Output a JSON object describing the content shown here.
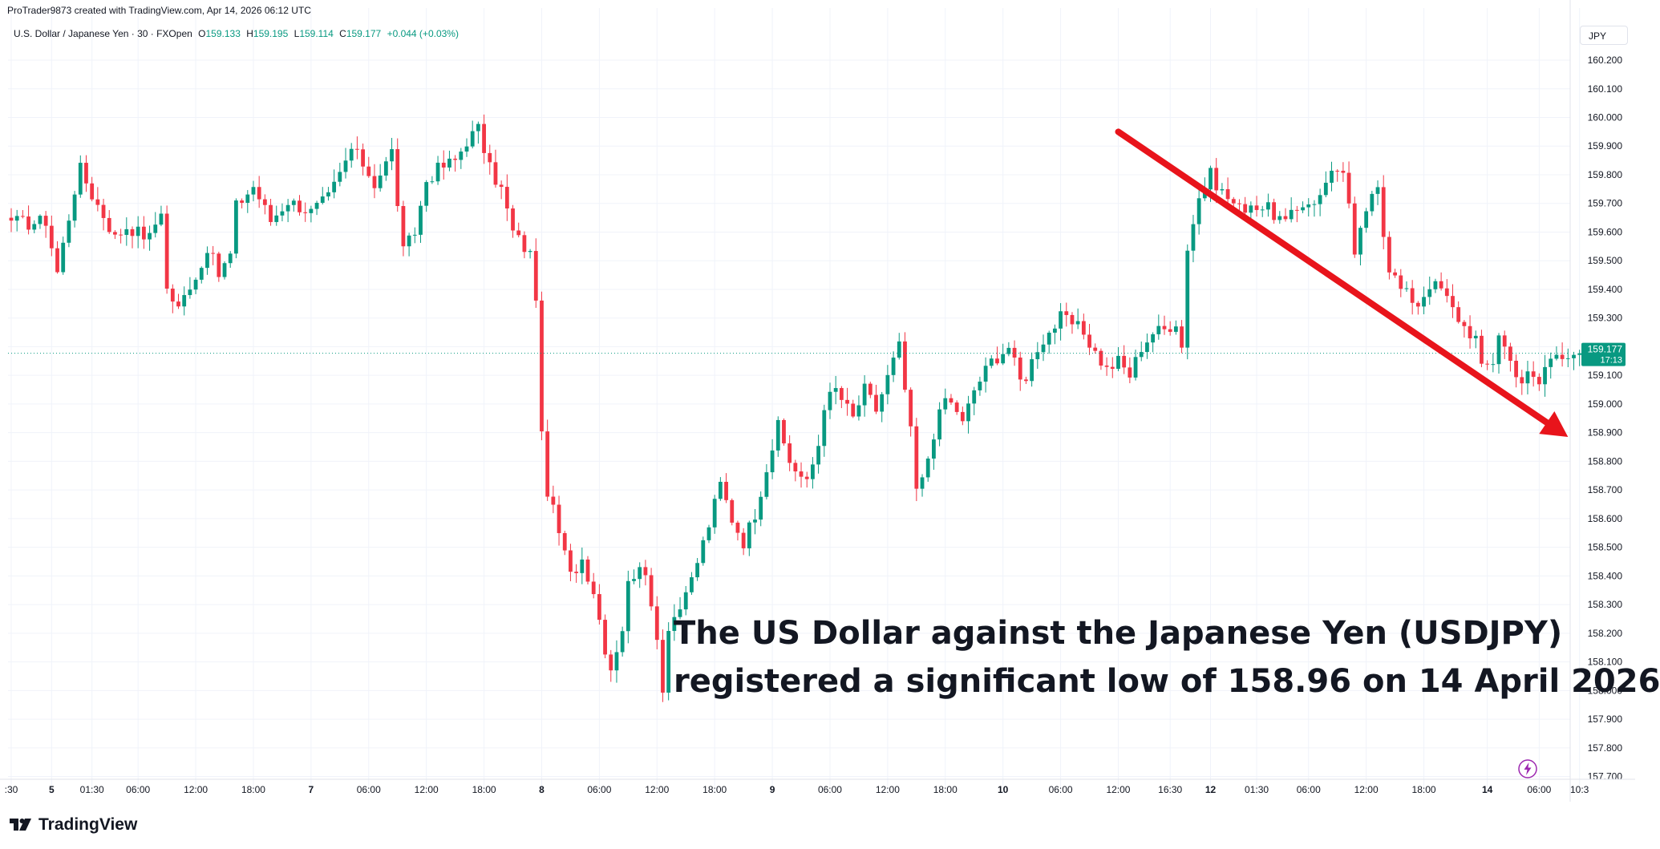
{
  "header": {
    "credit": "ProTrader9873 created with TradingView.com, Apr 14, 2026 06:12 UTC"
  },
  "legend": {
    "symbol": "U.S. Dollar / Japanese Yen · 30 · FXOpen",
    "open_label": "O",
    "open": "159.133",
    "high_label": "H",
    "high": "159.195",
    "low_label": "L",
    "low": "159.114",
    "close_label": "C",
    "close": "159.177",
    "change": "+0.044 (+0.03%)"
  },
  "currency": "JPY",
  "price_tag": {
    "price": "159.177",
    "countdown": "17:13"
  },
  "annotation": {
    "line1": "The US Dollar against the Japanese Yen (USDJPY)",
    "line2": "registered a significant low of 158.96 on 14 April 2026"
  },
  "footer": {
    "brand": "TradingView"
  },
  "colors": {
    "up": "#089981",
    "down": "#f23645",
    "arrow": "#e8141b",
    "grid": "#f0f3fa",
    "axis_text": "#131722",
    "tag": "#089981"
  },
  "chart_data": {
    "type": "candlestick",
    "title": "U.S. Dollar / Japanese Yen · 30 · FXOpen",
    "ylim": [
      157.64,
      160.27
    ],
    "y_ticks": [
      "157.700",
      "157.800",
      "157.900",
      "158.000",
      "158.100",
      "158.200",
      "158.300",
      "158.400",
      "158.500",
      "158.600",
      "158.700",
      "158.800",
      "158.900",
      "159.000",
      "159.100",
      "159.200",
      "159.300",
      "159.400",
      "159.500",
      "159.600",
      "159.700",
      "159.800",
      "159.900",
      "160.000",
      "160.100",
      "160.200"
    ],
    "x_ticks": [
      {
        "label": ":30",
        "bar": 0
      },
      {
        "label": "5",
        "bar": 7,
        "bold": true
      },
      {
        "label": "01:30",
        "bar": 14
      },
      {
        "label": "06:00",
        "bar": 22
      },
      {
        "label": "12:00",
        "bar": 32
      },
      {
        "label": "18:00",
        "bar": 42
      },
      {
        "label": "7",
        "bar": 52,
        "bold": true
      },
      {
        "label": "06:00",
        "bar": 62
      },
      {
        "label": "12:00",
        "bar": 72
      },
      {
        "label": "18:00",
        "bar": 82
      },
      {
        "label": "8",
        "bar": 92,
        "bold": true
      },
      {
        "label": "06:00",
        "bar": 102
      },
      {
        "label": "12:00",
        "bar": 112
      },
      {
        "label": "18:00",
        "bar": 122
      },
      {
        "label": "9",
        "bar": 132,
        "bold": true
      },
      {
        "label": "06:00",
        "bar": 142
      },
      {
        "label": "12:00",
        "bar": 152
      },
      {
        "label": "18:00",
        "bar": 162
      },
      {
        "label": "10",
        "bar": 172,
        "bold": true
      },
      {
        "label": "06:00",
        "bar": 182
      },
      {
        "label": "12:00",
        "bar": 192
      },
      {
        "label": "16:30",
        "bar": 201
      },
      {
        "label": "12",
        "bar": 208,
        "bold": true
      },
      {
        "label": "01:30",
        "bar": 216
      },
      {
        "label": "06:00",
        "bar": 225
      },
      {
        "label": "12:00",
        "bar": 235
      },
      {
        "label": "18:00",
        "bar": 245
      },
      {
        "label": "14",
        "bar": 256,
        "bold": true
      },
      {
        "label": "06:00",
        "bar": 265
      },
      {
        "label": "10:3",
        "bar": 272
      }
    ],
    "current_price": 159.177,
    "trend_arrow": {
      "from": {
        "bar": 192,
        "price": 159.95
      },
      "to": {
        "bar": 270,
        "price": 158.885
      }
    },
    "anchors": [
      [
        0,
        159.64
      ],
      [
        3,
        159.63
      ],
      [
        6,
        159.64
      ],
      [
        8,
        159.46
      ],
      [
        11,
        159.75
      ],
      [
        12,
        159.82
      ],
      [
        14,
        159.73
      ],
      [
        16,
        159.66
      ],
      [
        18,
        159.58
      ],
      [
        20,
        159.62
      ],
      [
        24,
        159.58
      ],
      [
        26,
        159.68
      ],
      [
        27,
        159.4
      ],
      [
        29,
        159.33
      ],
      [
        31,
        159.42
      ],
      [
        33,
        159.48
      ],
      [
        34,
        159.55
      ],
      [
        36,
        159.45
      ],
      [
        38,
        159.52
      ],
      [
        39,
        159.69
      ],
      [
        42,
        159.76
      ],
      [
        45,
        159.64
      ],
      [
        48,
        159.71
      ],
      [
        52,
        159.67
      ],
      [
        55,
        159.72
      ],
      [
        57,
        159.8
      ],
      [
        59,
        159.89
      ],
      [
        61,
        159.84
      ],
      [
        63,
        159.77
      ],
      [
        65,
        159.84
      ],
      [
        66,
        159.88
      ],
      [
        68,
        159.53
      ],
      [
        70,
        159.6
      ],
      [
        72,
        159.78
      ],
      [
        74,
        159.82
      ],
      [
        77,
        159.85
      ],
      [
        79,
        159.92
      ],
      [
        81,
        159.96
      ],
      [
        83,
        159.82
      ],
      [
        85,
        159.75
      ],
      [
        87,
        159.6
      ],
      [
        90,
        159.52
      ],
      [
        91,
        159.38
      ],
      [
        92,
        158.88
      ],
      [
        93,
        158.7
      ],
      [
        95,
        158.55
      ],
      [
        97,
        158.4
      ],
      [
        99,
        158.46
      ],
      [
        101,
        158.35
      ],
      [
        103,
        158.15
      ],
      [
        104,
        158.08
      ],
      [
        106,
        158.22
      ],
      [
        107,
        158.37
      ],
      [
        109,
        158.45
      ],
      [
        110,
        158.38
      ],
      [
        112,
        158.2
      ],
      [
        113,
        158.0
      ],
      [
        114,
        158.23
      ],
      [
        117,
        158.32
      ],
      [
        119,
        158.45
      ],
      [
        121,
        158.58
      ],
      [
        123,
        158.72
      ],
      [
        125,
        158.6
      ],
      [
        127,
        158.52
      ],
      [
        129,
        158.62
      ],
      [
        131,
        158.78
      ],
      [
        133,
        158.92
      ],
      [
        135,
        158.8
      ],
      [
        138,
        158.72
      ],
      [
        140,
        158.86
      ],
      [
        141,
        159.0
      ],
      [
        143,
        159.05
      ],
      [
        146,
        158.95
      ],
      [
        148,
        159.05
      ],
      [
        150,
        158.98
      ],
      [
        153,
        159.15
      ],
      [
        154,
        159.2
      ],
      [
        156,
        158.9
      ],
      [
        157,
        158.7
      ],
      [
        158,
        158.73
      ],
      [
        160,
        158.9
      ],
      [
        162,
        159.02
      ],
      [
        164,
        158.98
      ],
      [
        165,
        158.93
      ],
      [
        167,
        159.05
      ],
      [
        170,
        159.15
      ],
      [
        173,
        159.2
      ],
      [
        175,
        159.08
      ],
      [
        176,
        159.1
      ],
      [
        178,
        159.2
      ],
      [
        180,
        159.25
      ],
      [
        182,
        159.3
      ],
      [
        184,
        159.28
      ],
      [
        186,
        159.25
      ],
      [
        188,
        159.18
      ],
      [
        190,
        159.12
      ],
      [
        192,
        159.15
      ],
      [
        194,
        159.1
      ],
      [
        196,
        159.2
      ],
      [
        198,
        159.25
      ],
      [
        200,
        159.26
      ],
      [
        202,
        159.29
      ],
      [
        203,
        159.2
      ],
      [
        204,
        159.55
      ],
      [
        206,
        159.72
      ],
      [
        208,
        159.8
      ],
      [
        210,
        159.74
      ],
      [
        213,
        159.68
      ],
      [
        215,
        159.7
      ],
      [
        218,
        159.68
      ],
      [
        221,
        159.63
      ],
      [
        224,
        159.7
      ],
      [
        227,
        159.72
      ],
      [
        229,
        159.83
      ],
      [
        231,
        159.79
      ],
      [
        232,
        159.68
      ],
      [
        233,
        159.53
      ],
      [
        235,
        159.66
      ],
      [
        236,
        159.74
      ],
      [
        237,
        159.78
      ],
      [
        238,
        159.6
      ],
      [
        239,
        159.48
      ],
      [
        241,
        159.4
      ],
      [
        244,
        159.35
      ],
      [
        246,
        159.42
      ],
      [
        248,
        159.4
      ],
      [
        250,
        159.33
      ],
      [
        252,
        159.27
      ],
      [
        254,
        159.23
      ],
      [
        255,
        159.12
      ],
      [
        257,
        159.15
      ],
      [
        258,
        159.25
      ],
      [
        260,
        159.15
      ],
      [
        262,
        159.08
      ],
      [
        263,
        159.1
      ],
      [
        265,
        159.07
      ],
      [
        266,
        159.13
      ],
      [
        268,
        159.18
      ]
    ]
  }
}
